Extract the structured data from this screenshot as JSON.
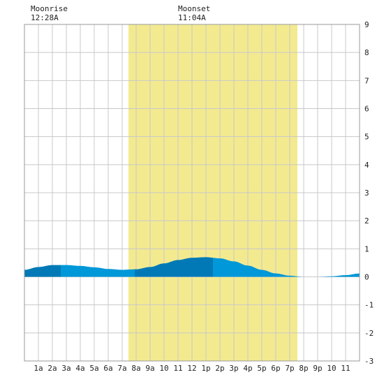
{
  "header": {
    "moonrise_label": "Moonrise",
    "moonrise_time": "12:28A",
    "moonset_label": "Moonset",
    "moonset_time": "11:04A"
  },
  "chart_data": {
    "type": "area",
    "title": "",
    "xlabel": "",
    "ylabel": "",
    "xlim": [
      0,
      24
    ],
    "ylim": [
      -3,
      9
    ],
    "grid": true,
    "x_tick_labels": [
      "1a",
      "2a",
      "3a",
      "4a",
      "5a",
      "6a",
      "7a",
      "8a",
      "9a",
      "10",
      "11",
      "12",
      "1p",
      "2p",
      "3p",
      "4p",
      "5p",
      "6p",
      "7p",
      "8p",
      "9p",
      "10",
      "11"
    ],
    "y_tick_labels": [
      "-3",
      "-2",
      "-1",
      "0",
      "1",
      "2",
      "3",
      "4",
      "5",
      "6",
      "7",
      "8",
      "9"
    ],
    "daylight_span": {
      "start_hour": 7.45,
      "end_hour": 19.55
    },
    "band_boundaries_hours": [
      2.6,
      7.9,
      13.5
    ],
    "series": [
      {
        "x": [
          0,
          1,
          2,
          3,
          4,
          5,
          6,
          7,
          8,
          9,
          10,
          11,
          12,
          13,
          14,
          15,
          16,
          17,
          18,
          19,
          20,
          21,
          22,
          23,
          24
        ],
        "values": [
          0.25,
          0.35,
          0.42,
          0.42,
          0.39,
          0.34,
          0.28,
          0.25,
          0.27,
          0.35,
          0.48,
          0.6,
          0.68,
          0.7,
          0.66,
          0.55,
          0.4,
          0.25,
          0.12,
          0.04,
          0.0,
          0.0,
          0.02,
          0.06,
          0.12
        ]
      }
    ],
    "colors": {
      "daylight": "#f3ea90",
      "grid": "#c8c8c8",
      "water_light": "#0098d8",
      "water_dark": "#0079b6"
    }
  }
}
